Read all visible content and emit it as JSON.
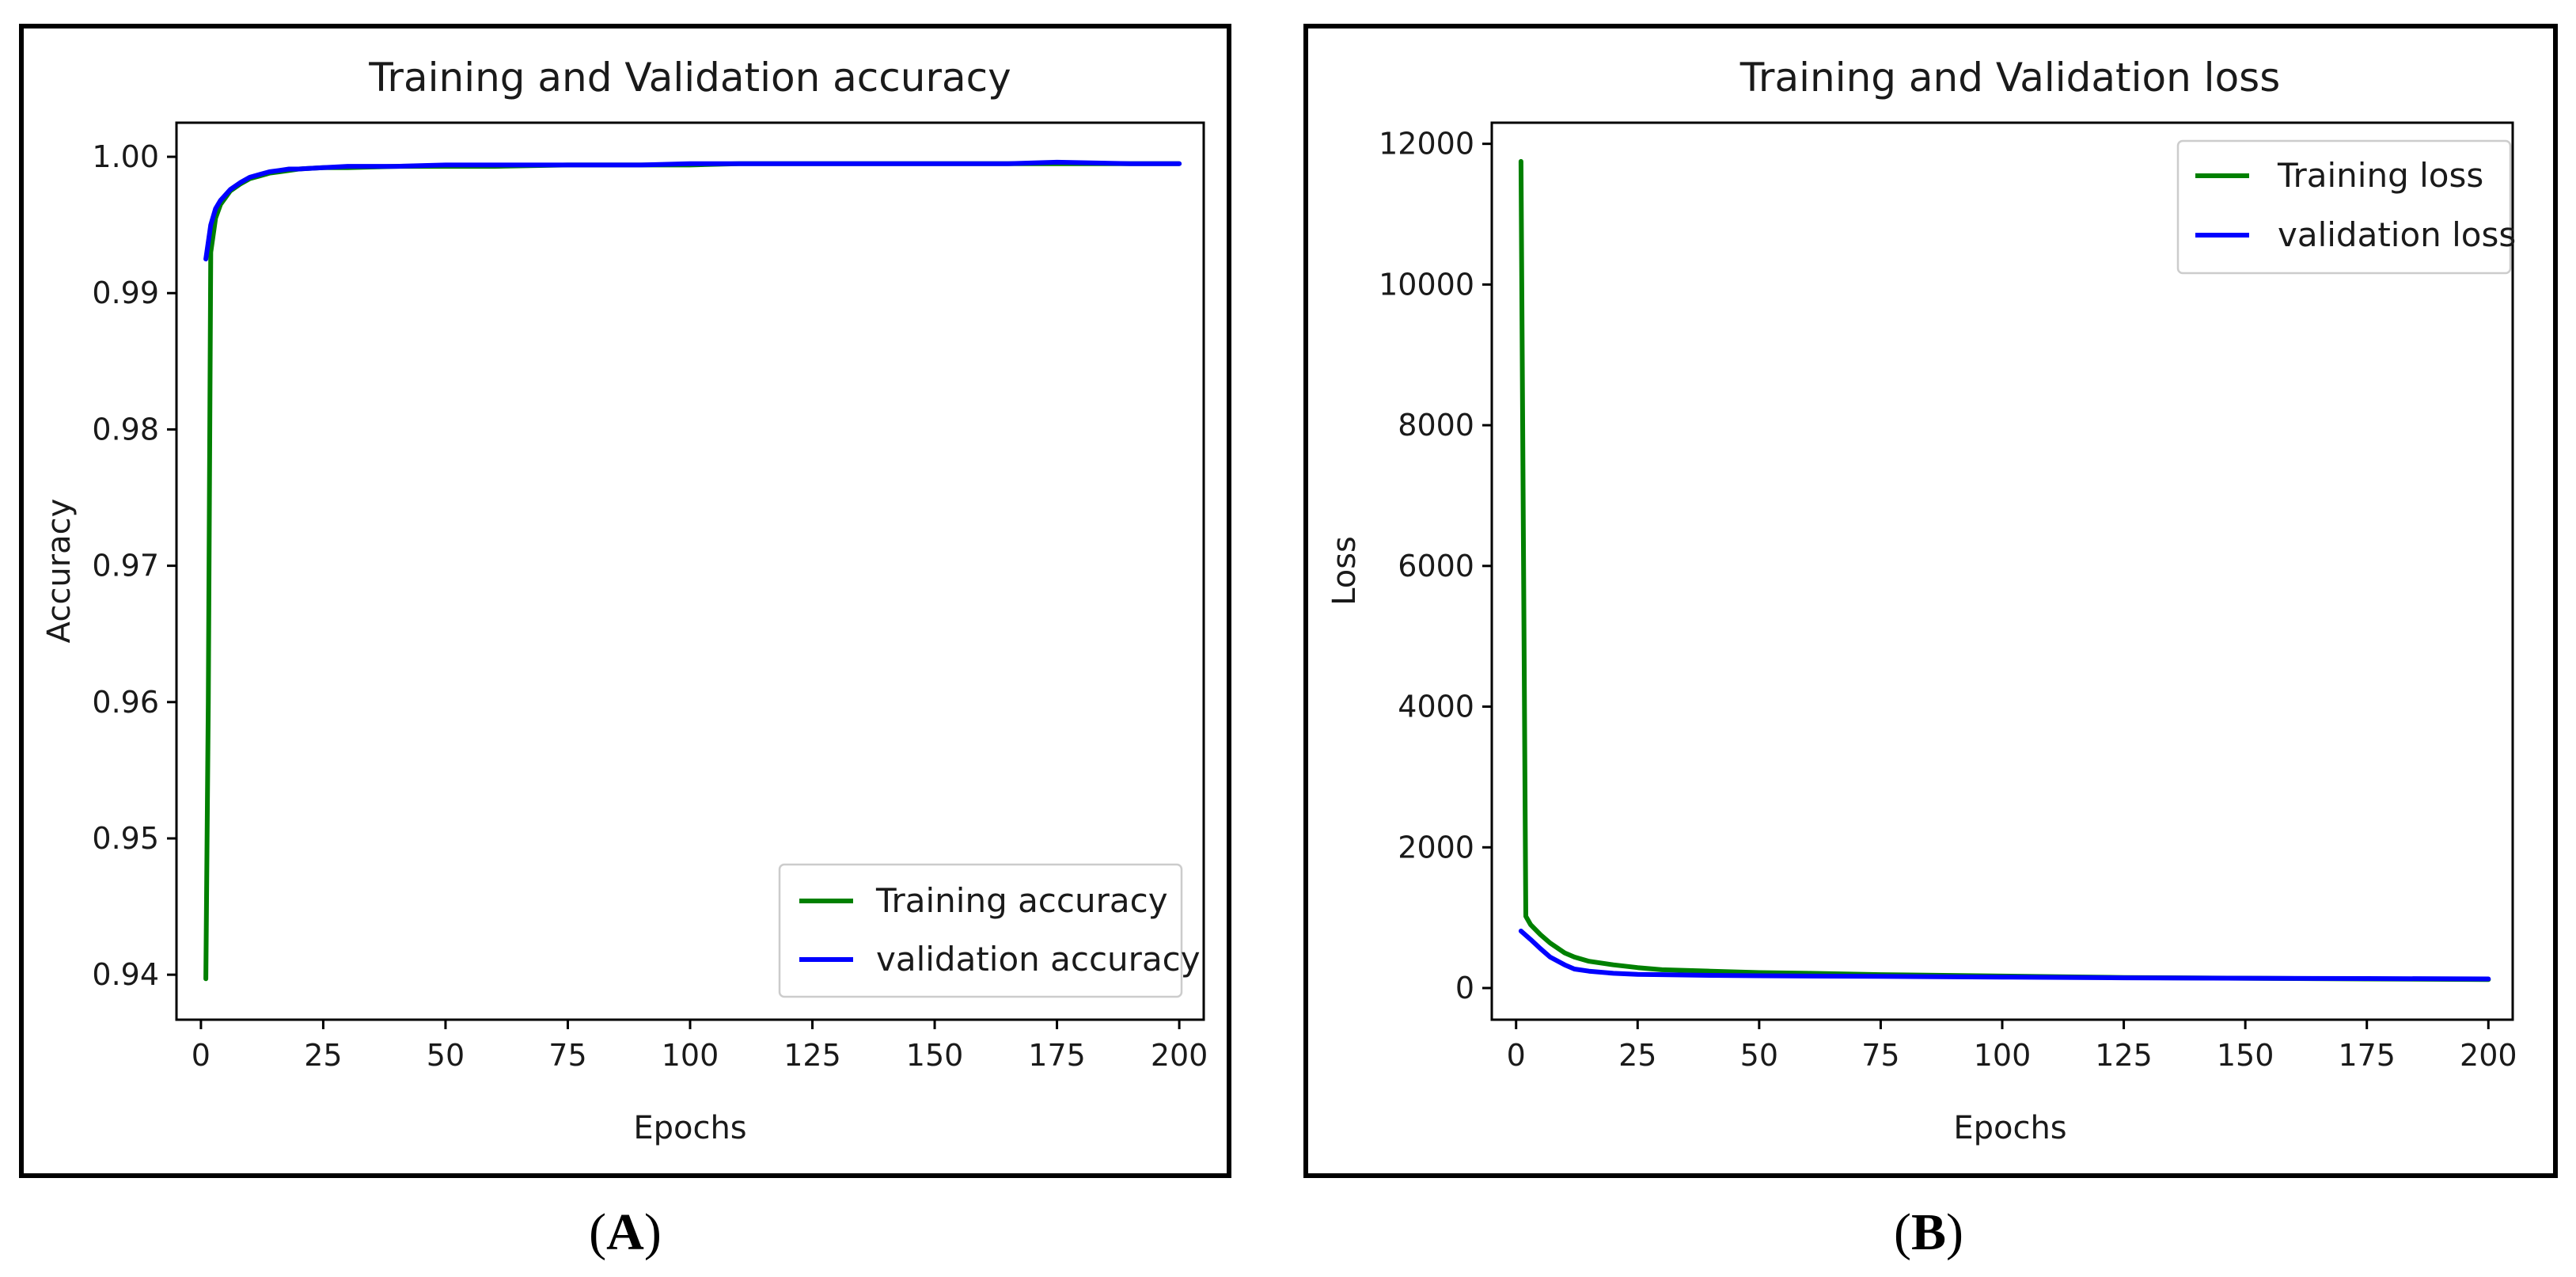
{
  "chart_data": [
    {
      "panel_label": "A",
      "type": "line",
      "title": "Training and Validation accuracy",
      "xlabel": "Epochs",
      "ylabel": "Accuracy",
      "xlim": [
        -5,
        205
      ],
      "ylim": [
        0.9367,
        1.0025
      ],
      "xticks": [
        0,
        25,
        50,
        75,
        100,
        125,
        150,
        175,
        200
      ],
      "yticks": [
        0.94,
        0.95,
        0.96,
        0.97,
        0.98,
        0.99,
        1.0
      ],
      "ytick_labels": [
        "0.94",
        "0.95",
        "0.96",
        "0.97",
        "0.98",
        "0.99",
        "1.00"
      ],
      "grid": false,
      "legend_position": "lower-right",
      "series": [
        {
          "name": "Training accuracy",
          "color": "#008000",
          "x": [
            1,
            1.5,
            2,
            3,
            4,
            5,
            6,
            8,
            10,
            12,
            14,
            16,
            18,
            20,
            25,
            30,
            40,
            50,
            60,
            75,
            90,
            100,
            110,
            125,
            140,
            150,
            165,
            175,
            190,
            200
          ],
          "y": [
            0.9397,
            0.96,
            0.993,
            0.9955,
            0.9965,
            0.997,
            0.9975,
            0.998,
            0.9984,
            0.9986,
            0.9988,
            0.9989,
            0.999,
            0.9991,
            0.9992,
            0.9992,
            0.9993,
            0.9993,
            0.9993,
            0.9994,
            0.9994,
            0.9994,
            0.9995,
            0.9995,
            0.9995,
            0.9995,
            0.9995,
            0.9995,
            0.9995,
            0.9995
          ]
        },
        {
          "name": "validation accuracy",
          "color": "#0000ff",
          "x": [
            1,
            2,
            3,
            4,
            5,
            6,
            8,
            10,
            12,
            14,
            16,
            18,
            20,
            25,
            30,
            40,
            50,
            60,
            75,
            90,
            100,
            110,
            125,
            140,
            150,
            165,
            175,
            190,
            200
          ],
          "y": [
            0.9925,
            0.995,
            0.9962,
            0.9968,
            0.9972,
            0.9976,
            0.9981,
            0.9985,
            0.9987,
            0.9989,
            0.999,
            0.9991,
            0.9991,
            0.9992,
            0.9993,
            0.9993,
            0.9994,
            0.9994,
            0.9994,
            0.9994,
            0.9995,
            0.9995,
            0.9995,
            0.9995,
            0.9995,
            0.9995,
            0.9996,
            0.9995,
            0.9995
          ]
        }
      ]
    },
    {
      "panel_label": "B",
      "type": "line",
      "title": "Training and Validation loss",
      "xlabel": "Epochs",
      "ylabel": "Loss",
      "xlim": [
        -5,
        205
      ],
      "ylim": [
        -450,
        12300
      ],
      "xticks": [
        0,
        25,
        50,
        75,
        100,
        125,
        150,
        175,
        200
      ],
      "yticks": [
        0,
        2000,
        4000,
        6000,
        8000,
        10000,
        12000
      ],
      "ytick_labels": [
        "0",
        "2000",
        "4000",
        "6000",
        "8000",
        "10000",
        "12000"
      ],
      "grid": false,
      "legend_position": "upper-right",
      "series": [
        {
          "name": "Training loss",
          "color": "#008000",
          "x": [
            1,
            2,
            3,
            5,
            7,
            10,
            12,
            15,
            20,
            25,
            30,
            40,
            50,
            60,
            75,
            100,
            125,
            150,
            175,
            200
          ],
          "y": [
            11750,
            1020,
            900,
            760,
            640,
            500,
            440,
            380,
            330,
            290,
            260,
            240,
            220,
            210,
            190,
            170,
            150,
            140,
            130,
            120
          ]
        },
        {
          "name": "validation loss",
          "color": "#0000ff",
          "x": [
            1,
            3,
            5,
            7,
            10,
            12,
            15,
            20,
            25,
            30,
            40,
            50,
            75,
            100,
            125,
            150,
            175,
            200
          ],
          "y": [
            810,
            690,
            560,
            440,
            330,
            270,
            240,
            210,
            195,
            190,
            180,
            175,
            165,
            155,
            145,
            140,
            135,
            130
          ]
        }
      ]
    }
  ],
  "captions": {
    "panel_a": "A",
    "panel_b": "B",
    "open_paren": "(",
    "close_paren": ")"
  }
}
